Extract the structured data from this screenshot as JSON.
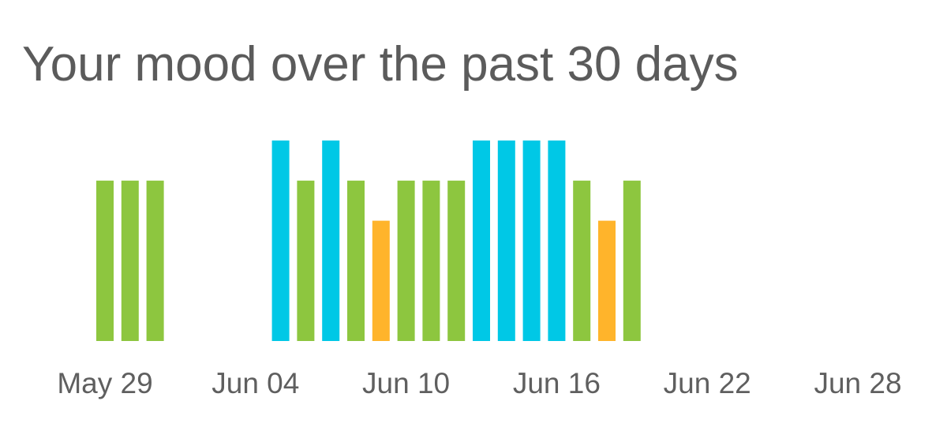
{
  "title": "Your mood over the past 30 days",
  "chart_data": {
    "type": "bar",
    "title": "Your mood over the past 30 days",
    "xlabel": "",
    "ylabel": "",
    "x_tick_labels": [
      "May 29",
      "Jun 04",
      "Jun 10",
      "Jun 16",
      "Jun 22",
      "Jun 28"
    ],
    "x_tick_days": [
      0,
      6,
      12,
      18,
      24,
      30
    ],
    "ylim": [
      0,
      5
    ],
    "grid": false,
    "legend": "none",
    "mood_colors": {
      "3": "#ffb42b",
      "4": "#8dc63f",
      "5": "#00c8e6"
    },
    "points": [
      {
        "day": 0,
        "value": 4
      },
      {
        "day": 1,
        "value": 4
      },
      {
        "day": 2,
        "value": 4
      },
      {
        "day": 7,
        "value": 5
      },
      {
        "day": 8,
        "value": 4
      },
      {
        "day": 9,
        "value": 5
      },
      {
        "day": 10,
        "value": 4
      },
      {
        "day": 11,
        "value": 3
      },
      {
        "day": 12,
        "value": 4
      },
      {
        "day": 13,
        "value": 4
      },
      {
        "day": 14,
        "value": 4
      },
      {
        "day": 15,
        "value": 5
      },
      {
        "day": 16,
        "value": 5
      },
      {
        "day": 17,
        "value": 5
      },
      {
        "day": 18,
        "value": 5
      },
      {
        "day": 19,
        "value": 4
      },
      {
        "day": 20,
        "value": 3
      },
      {
        "day": 21,
        "value": 4
      }
    ]
  }
}
